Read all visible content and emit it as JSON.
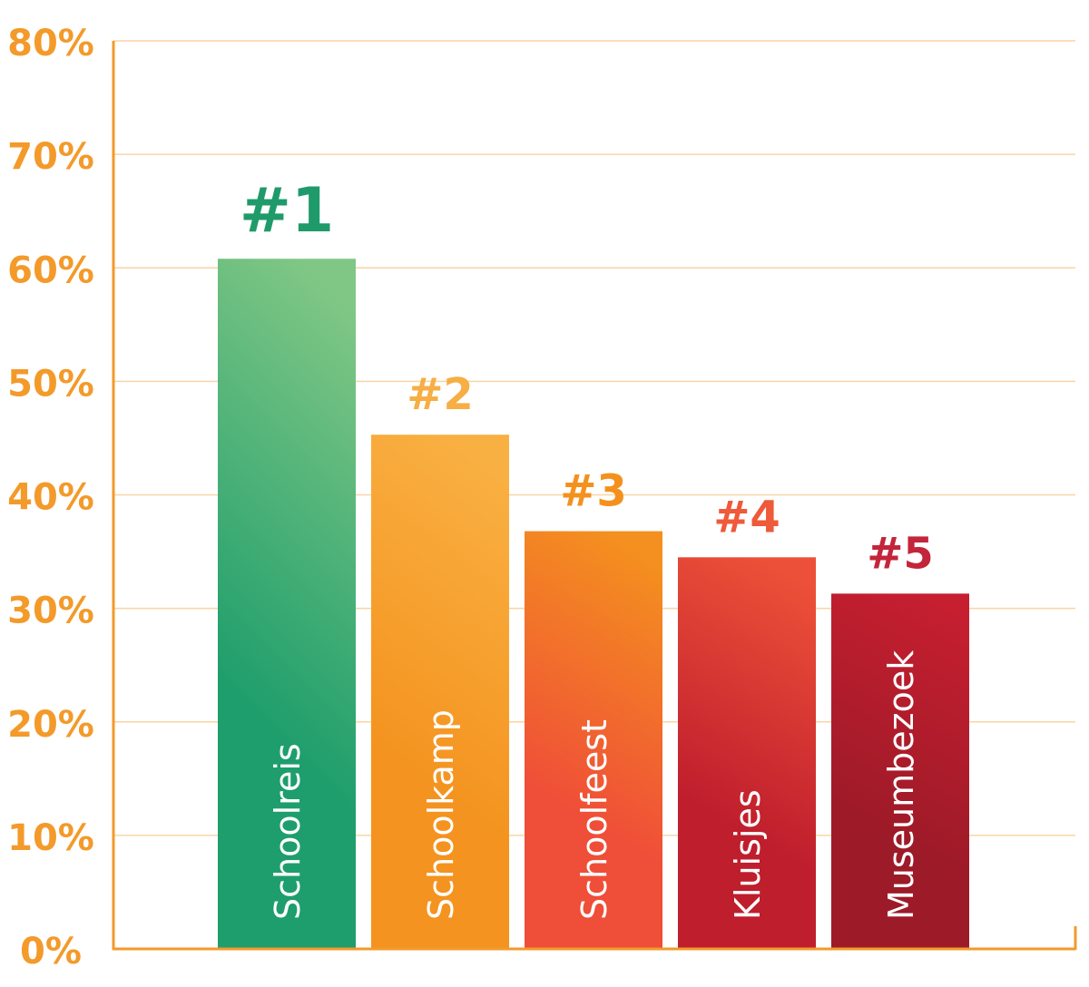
{
  "chart_data": {
    "type": "bar",
    "categories": [
      "Schoolreis",
      "Schoolkamp",
      "Schoolfeest",
      "Kluisjes",
      "Museumbezoek"
    ],
    "values": [
      60.8,
      45.3,
      36.8,
      34.5,
      31.3
    ],
    "ranks": [
      "#1",
      "#2",
      "#3",
      "#4",
      "#5"
    ],
    "ylim": [
      0,
      80
    ],
    "yticks": [
      "0%",
      "10%",
      "20%",
      "30%",
      "40%",
      "50%",
      "60%",
      "70%",
      "80%"
    ],
    "grid": true,
    "colors": {
      "axis": "#f39a2a",
      "tick_text": "#f39a2a",
      "grid": "#f9d4a6",
      "bar_label": "#ffffff",
      "bars": [
        {
          "top": "#80c785",
          "bottom": "#1e9e6c"
        },
        {
          "top": "#f9b042",
          "bottom": "#f4931f"
        },
        {
          "top": "#f4901f",
          "bottom": "#ef4e38"
        },
        {
          "top": "#ed5038",
          "bottom": "#bf1e2d"
        },
        {
          "top": "#c51f30",
          "bottom": "#9d1a28"
        }
      ],
      "ranks": [
        "#1f9a6b",
        "#f6ae45",
        "#f4911e",
        "#ee5a3a",
        "#c3253a"
      ]
    }
  }
}
